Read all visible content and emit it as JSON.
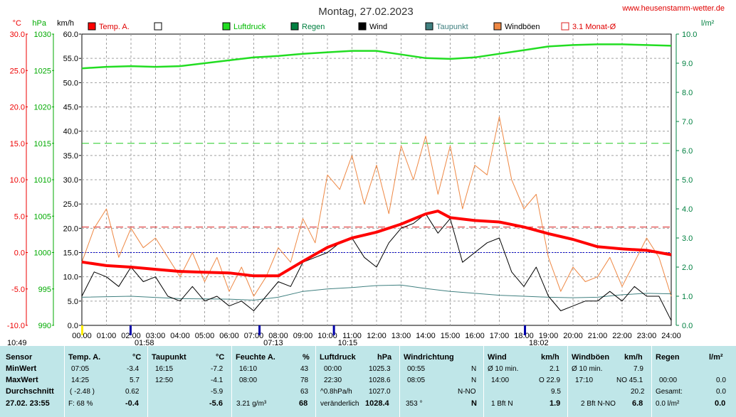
{
  "header": {
    "title": "Montag, 27.02.2023",
    "site": "www.heusenstamm-wetter.de"
  },
  "colors": {
    "temp": "#ff0000",
    "pressure": "#22dd22",
    "rain": "#008040",
    "wind": "#000000",
    "dewpoint": "#408080",
    "gust": "#ee8844",
    "avg": "#dd2222",
    "grid": "#a0a0a0",
    "table_bg": "#bfe6e8"
  },
  "chart_data": {
    "type": "line",
    "title": "Montag, 27.02.2023",
    "axes": {
      "temp": {
        "unit": "°C",
        "range": [
          -10,
          30
        ],
        "ticks": [
          "30.0",
          "25.0",
          "20.0",
          "15.0",
          "10.0",
          "5.0",
          "0.0",
          "-5.0",
          "-10.0"
        ]
      },
      "pressure": {
        "unit": "hPa",
        "range": [
          990,
          1030
        ],
        "ticks": [
          "1030",
          "1025",
          "1020",
          "1015",
          "1010",
          "1005",
          "1000",
          "995",
          "990"
        ]
      },
      "wind": {
        "unit": "km/h",
        "range": [
          0,
          60
        ],
        "ticks": [
          "60.0",
          "55.0",
          "50.0",
          "45.0",
          "40.0",
          "35.0",
          "30.0",
          "25.0",
          "20.0",
          "15.0",
          "10.0",
          "5.0",
          "0.0"
        ]
      },
      "rain": {
        "unit": "l/m²",
        "range": [
          0,
          10
        ],
        "ticks": [
          "10.0",
          "9.0",
          "8.0",
          "7.0",
          "6.0",
          "5.0",
          "4.0",
          "3.0",
          "2.0",
          "1.0",
          "0.0"
        ]
      },
      "x": {
        "range": [
          0,
          24
        ],
        "ticks": [
          "00:00",
          "01:00",
          "02:00",
          "03:00",
          "04:00",
          "05:00",
          "06:00",
          "07:00",
          "08:00",
          "09:00",
          "10:00",
          "11:00",
          "12:00",
          "13:00",
          "14:00",
          "15:00",
          "16:00",
          "17:00",
          "18:00",
          "19:00",
          "20:00",
          "21:00",
          "22:00",
          "23:00",
          "24:00"
        ]
      }
    },
    "legend": [
      "Temp. A.",
      "",
      "Luftdruck",
      "Regen",
      "Wind",
      "Taupunkt",
      "Windböen",
      "3.1 Monat-Ø"
    ],
    "markers": [
      {
        "label": "10:49",
        "x": 0
      },
      {
        "label": "01:58",
        "x": 1.97
      },
      {
        "label": "07:13",
        "x": 7.22
      },
      {
        "label": "10:15",
        "x": 10.25
      },
      {
        "label": "18:02",
        "x": 18.03
      }
    ],
    "reference_lines": {
      "temp_month_avg": 3.5,
      "zero_temp": 0.0,
      "pressure_ref": 1015
    },
    "series": [
      {
        "name": "Temp. A.",
        "axis": "temp",
        "x": [
          0,
          1,
          2,
          3,
          4,
          5,
          6,
          7,
          8,
          9,
          10,
          11,
          12,
          13,
          14,
          14.5,
          15,
          16,
          17,
          18,
          19,
          20,
          21,
          22,
          23,
          24
        ],
        "values": [
          -1.3,
          -1.8,
          -2.0,
          -2.3,
          -2.6,
          -2.7,
          -2.8,
          -3.2,
          -3.2,
          -1.2,
          0.7,
          2.0,
          2.8,
          3.9,
          5.3,
          5.7,
          4.8,
          4.4,
          4.2,
          3.5,
          2.6,
          1.8,
          0.8,
          0.5,
          0.3,
          -0.3
        ]
      },
      {
        "name": "Luftdruck",
        "axis": "pressure",
        "x": [
          0,
          1,
          2,
          3,
          4,
          5,
          6,
          7,
          8,
          9,
          10,
          11,
          12,
          13,
          14,
          15,
          16,
          17,
          18,
          19,
          20,
          21,
          22,
          23,
          24
        ],
        "values": [
          1025.3,
          1025.5,
          1025.6,
          1025.5,
          1025.6,
          1026.0,
          1026.4,
          1026.8,
          1027.0,
          1027.3,
          1027.5,
          1027.7,
          1027.7,
          1027.2,
          1026.7,
          1026.6,
          1026.8,
          1027.3,
          1027.8,
          1028.3,
          1028.5,
          1028.6,
          1028.6,
          1028.5,
          1028.4
        ]
      },
      {
        "name": "Taupunkt",
        "axis": "wind",
        "x": [
          0,
          2,
          4,
          6,
          7,
          8,
          9,
          10,
          11,
          12,
          13,
          14,
          15,
          16,
          17,
          18,
          19,
          20,
          21,
          22,
          23,
          24
        ],
        "values": [
          5.8,
          6.0,
          5.5,
          5.4,
          5.2,
          5.8,
          7.0,
          7.5,
          7.8,
          8.2,
          8.3,
          7.6,
          7.0,
          6.6,
          6.2,
          6.0,
          5.8,
          5.7,
          5.8,
          6.3,
          6.6,
          6.5
        ]
      },
      {
        "name": "Wind",
        "axis": "wind",
        "x": [
          0,
          0.5,
          1,
          1.5,
          2,
          2.5,
          3,
          3.5,
          4,
          4.5,
          5,
          5.5,
          6,
          6.5,
          7,
          7.5,
          8,
          8.5,
          9,
          9.5,
          10,
          10.5,
          11,
          11.5,
          12,
          12.5,
          13,
          13.5,
          14,
          14.5,
          15,
          15.5,
          16,
          16.5,
          17,
          17.5,
          18,
          18.5,
          19,
          19.5,
          20,
          20.5,
          21,
          21.5,
          22,
          22.5,
          23,
          23.5,
          24
        ],
        "values": [
          6,
          11,
          10,
          8,
          12,
          9,
          10,
          6,
          5,
          8,
          5,
          6,
          4,
          5,
          3,
          6,
          9,
          8,
          13,
          14,
          15,
          17,
          18,
          14,
          12,
          17,
          20,
          21,
          23,
          19,
          22,
          13,
          15,
          17,
          18,
          11,
          8,
          12,
          6,
          3,
          4,
          5,
          5,
          7,
          5,
          8,
          6,
          6,
          1
        ]
      },
      {
        "name": "Windböen",
        "axis": "wind",
        "x": [
          0,
          0.5,
          1,
          1.5,
          2,
          2.5,
          3,
          3.5,
          4,
          4.5,
          5,
          5.5,
          6,
          6.5,
          7,
          7.5,
          8,
          8.5,
          9,
          9.5,
          10,
          10.5,
          11,
          11.5,
          12,
          12.5,
          13,
          13.5,
          14,
          14.5,
          15,
          15.5,
          16,
          16.5,
          17,
          17.5,
          18,
          18.5,
          19,
          19.5,
          20,
          20.5,
          21,
          21.5,
          22,
          22.5,
          23,
          23.5,
          24
        ],
        "values": [
          13,
          20,
          24,
          14,
          20,
          16,
          18,
          14,
          10,
          15,
          9,
          14,
          7,
          12,
          6,
          10,
          16,
          13,
          22,
          17,
          31,
          28,
          35,
          25,
          33,
          23,
          37,
          30,
          39,
          27,
          37,
          24,
          33,
          31,
          43,
          30,
          24,
          27,
          14,
          7,
          12,
          9,
          10,
          14,
          8,
          13,
          18,
          14,
          6
        ]
      }
    ]
  },
  "table": {
    "headers": [
      "Sensor",
      "Temp. A.",
      "°C",
      "Taupunkt",
      "°C",
      "Feuchte A.",
      "%",
      "Luftdruck",
      "hPa",
      "Windrichtung",
      "Wind",
      "km/h",
      "Windböen",
      "km/h",
      "Regen",
      "l/m²"
    ],
    "row_labels": [
      "MinWert",
      "MaxWert",
      "Durchschnitt",
      "27.02. 23:55"
    ],
    "temp": {
      "min_time": "07:05",
      "min": "-3.4",
      "max_time": "14:25",
      "max": "5.7",
      "avg_note": "( -2.48 )",
      "avg": "0.62",
      "cur_note": "F: 68 %",
      "cur": "-0.4"
    },
    "dew": {
      "min_time": "16:15",
      "min": "-7.2",
      "max_time": "12:50",
      "max": "-4.1",
      "avg": "-5.9",
      "cur": "-5.6"
    },
    "hum": {
      "min_time": "16:10",
      "min": "43",
      "max_time": "08:00",
      "max": "78",
      "avg": "63",
      "cur_note": "3.21 g/m³",
      "cur": "68"
    },
    "press": {
      "min_time": "00:00",
      "min": "1025.3",
      "max_time": "22:30",
      "max": "1028.6",
      "avg_note": "^0.8hPa/h",
      "avg": "1027.0",
      "cur_note": "veränderlich",
      "cur": "1028.4"
    },
    "dir": {
      "min_time": "00:55",
      "min": "N",
      "max_time": "08:05",
      "max": "N",
      "avg": "N-NO",
      "cur_note": "353 °",
      "cur": "N"
    },
    "wind": {
      "min_note": "Ø 10 min.",
      "min": "2.1",
      "max_time": "14:00",
      "max_note": "O 22.9",
      "avg": "9.5",
      "cur_note": "1 Bft N",
      "cur": "1.9"
    },
    "gust": {
      "min_note": "Ø 10 min.",
      "min": "7.9",
      "max_time": "17:10",
      "max_note": "NO 45.1",
      "avg": "20.2",
      "cur_note": "2 Bft N-NO",
      "cur": "6.8"
    },
    "rain": {
      "max_time": "00:00",
      "max": "0.0",
      "avg_note": "Gesamt:",
      "avg": "0.0",
      "cur_note": "0.0 l/m²",
      "cur": "0.0"
    }
  }
}
